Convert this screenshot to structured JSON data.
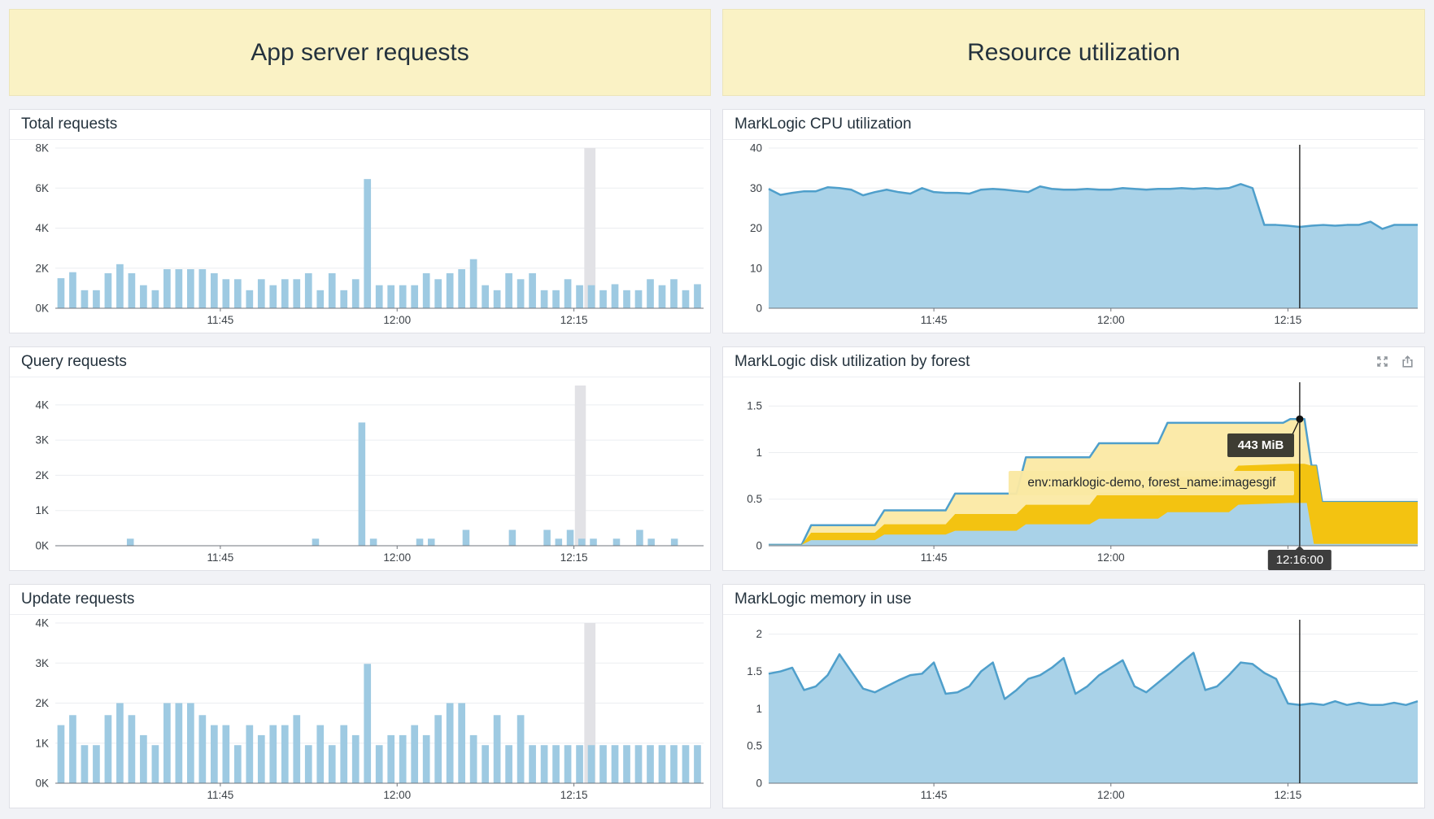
{
  "headers": [
    {
      "label": "App server requests"
    },
    {
      "label": "Resource utilization"
    }
  ],
  "colors": {
    "bar": "#9ecae2",
    "hover_bar": "#e2e2e6",
    "area_fill": "#a9d2e8",
    "line": "#4f9fcb",
    "gold": "#f3c311",
    "pale_yellow": "#fbeaa9",
    "grid": "#ebedf0",
    "axis": "#70757c",
    "tick_text": "#3b4147",
    "cursor": "#111111",
    "icon": "#8f959b"
  },
  "time_axis": {
    "t_max": 55,
    "ticks": [
      {
        "t": 14,
        "label": "11:45"
      },
      {
        "t": 29,
        "label": "12:00"
      },
      {
        "t": 44,
        "label": "12:15"
      }
    ]
  },
  "cursor": {
    "t": 45,
    "time_label": "12:16:00"
  },
  "chart_data": [
    {
      "type": "bar",
      "title": "Total requests",
      "ymax": 8,
      "yticks": [
        {
          "v": 0,
          "label": "0K"
        },
        {
          "v": 2,
          "label": "2K"
        },
        {
          "v": 4,
          "label": "4K"
        },
        {
          "v": 6,
          "label": "6K"
        },
        {
          "v": 8,
          "label": "8K"
        }
      ],
      "hover_index": 45,
      "values": [
        1.5,
        1.8,
        0.9,
        0.9,
        1.75,
        2.2,
        1.75,
        1.15,
        0.9,
        1.95,
        1.95,
        1.95,
        1.95,
        1.75,
        1.45,
        1.45,
        0.9,
        1.45,
        1.15,
        1.45,
        1.45,
        1.75,
        0.9,
        1.75,
        0.9,
        1.45,
        6.45,
        1.15,
        1.15,
        1.15,
        1.15,
        1.75,
        1.45,
        1.75,
        1.95,
        2.45,
        1.15,
        0.9,
        1.75,
        1.45,
        1.75,
        0.9,
        0.9,
        1.45,
        1.15,
        1.15,
        0.9,
        1.2,
        0.9,
        0.9,
        1.45,
        1.15,
        1.45,
        0.9,
        1.2
      ]
    },
    {
      "type": "bar",
      "title": "Query requests",
      "ymax": 4.55,
      "yticks": [
        {
          "v": 0,
          "label": "0K"
        },
        {
          "v": 1,
          "label": "1K"
        },
        {
          "v": 2,
          "label": "2K"
        },
        {
          "v": 3,
          "label": "3K"
        },
        {
          "v": 4,
          "label": "4K"
        }
      ],
      "hover_index": 45,
      "values": [
        0,
        0,
        0,
        0,
        0,
        0,
        0.2,
        0,
        0,
        0,
        0,
        0,
        0,
        0,
        0,
        0,
        0,
        0,
        0,
        0,
        0,
        0,
        0.2,
        0,
        0,
        0,
        3.5,
        0.2,
        0,
        0,
        0,
        0.2,
        0.2,
        0,
        0,
        0.45,
        0,
        0,
        0,
        0.45,
        0,
        0,
        0.45,
        0.2,
        0.45,
        0.2,
        0.2,
        0,
        0.2,
        0,
        0.45,
        0.2,
        0,
        0.2,
        0,
        0
      ]
    },
    {
      "type": "bar",
      "title": "Update requests",
      "ymax": 4,
      "yticks": [
        {
          "v": 0,
          "label": "0K"
        },
        {
          "v": 1,
          "label": "1K"
        },
        {
          "v": 2,
          "label": "2K"
        },
        {
          "v": 3,
          "label": "3K"
        },
        {
          "v": 4,
          "label": "4K"
        }
      ],
      "hover_index": 45,
      "values": [
        1.45,
        1.7,
        0.95,
        0.95,
        1.7,
        2.0,
        1.7,
        1.2,
        0.95,
        2.0,
        2.0,
        2.0,
        1.7,
        1.45,
        1.45,
        0.95,
        1.45,
        1.2,
        1.45,
        1.45,
        1.7,
        0.95,
        1.45,
        0.95,
        1.45,
        1.2,
        2.98,
        0.95,
        1.2,
        1.2,
        1.45,
        1.2,
        1.7,
        2.0,
        2.0,
        1.2,
        0.95,
        1.7,
        0.95,
        1.7,
        0.95,
        0.95,
        0.95,
        0.95,
        0.95,
        0.95,
        0.95,
        0.95,
        0.95,
        0.95,
        0.95,
        0.95,
        0.95,
        0.95,
        0.95
      ]
    },
    {
      "type": "area",
      "title": "MarkLogic CPU utilization",
      "ymax": 40,
      "yticks": [
        {
          "v": 0,
          "label": "0"
        },
        {
          "v": 10,
          "label": "10"
        },
        {
          "v": 20,
          "label": "20"
        },
        {
          "v": 30,
          "label": "30"
        },
        {
          "v": 40,
          "label": "40"
        }
      ],
      "cursor": true,
      "values": [
        29.8,
        28.3,
        28.8,
        29.2,
        29.2,
        30.2,
        30.0,
        29.6,
        28.2,
        29.0,
        29.6,
        29.0,
        28.6,
        30.0,
        29.0,
        28.8,
        28.8,
        28.6,
        29.6,
        29.8,
        29.6,
        29.3,
        29.0,
        30.4,
        29.8,
        29.6,
        29.6,
        29.8,
        29.6,
        29.6,
        30.0,
        29.8,
        29.6,
        29.8,
        29.8,
        30.0,
        29.8,
        30.0,
        29.8,
        30.0,
        31.0,
        30.0,
        20.8,
        20.8,
        20.6,
        20.3,
        20.6,
        20.8,
        20.6,
        20.8,
        20.8,
        21.6,
        19.8,
        20.8,
        20.8,
        20.8
      ]
    },
    {
      "type": "stacked",
      "title": "MarkLogic disk utilization by forest",
      "ymax": 1.72,
      "yticks": [
        {
          "v": 0,
          "label": "0"
        },
        {
          "v": 0.5,
          "label": "0.5"
        },
        {
          "v": 1,
          "label": "1"
        },
        {
          "v": 1.5,
          "label": "1.5"
        }
      ],
      "cursor": true,
      "has_icons": true,
      "series": [
        {
          "name": "total-pale-yellow",
          "color_key": "pale_yellow",
          "stroke": true,
          "points": [
            [
              0,
              0.01
            ],
            [
              2.8,
              0.01
            ],
            [
              3.6,
              0.22
            ],
            [
              9,
              0.22
            ],
            [
              9.8,
              0.38
            ],
            [
              15,
              0.38
            ],
            [
              15.8,
              0.56
            ],
            [
              21,
              0.56
            ],
            [
              21.8,
              0.95
            ],
            [
              27.2,
              0.95
            ],
            [
              28,
              1.1
            ],
            [
              33,
              1.1
            ],
            [
              33.8,
              1.32
            ],
            [
              43.6,
              1.32
            ],
            [
              44.2,
              1.36
            ],
            [
              45.4,
              1.36
            ],
            [
              46,
              0.86
            ],
            [
              46.4,
              0.86
            ],
            [
              46.9,
              0.47
            ],
            [
              55,
              0.47
            ]
          ]
        },
        {
          "name": "gold",
          "color_key": "gold",
          "stroke": false,
          "points": [
            [
              0,
              0.01
            ],
            [
              2.8,
              0.01
            ],
            [
              3.6,
              0.14
            ],
            [
              9,
              0.14
            ],
            [
              9.8,
              0.23
            ],
            [
              15,
              0.23
            ],
            [
              15.8,
              0.34
            ],
            [
              21,
              0.34
            ],
            [
              21.8,
              0.44
            ],
            [
              27.2,
              0.44
            ],
            [
              28,
              0.57
            ],
            [
              33,
              0.57
            ],
            [
              33.8,
              0.74
            ],
            [
              39,
              0.74
            ],
            [
              39.8,
              0.86
            ],
            [
              44.2,
              0.88
            ],
            [
              45.4,
              0.88
            ],
            [
              46,
              0.86
            ],
            [
              46.4,
              0.86
            ],
            [
              46.9,
              0.47
            ],
            [
              55,
              0.47
            ]
          ]
        },
        {
          "name": "blue",
          "color_key": "area_fill",
          "stroke": false,
          "points": [
            [
              0,
              0.01
            ],
            [
              2.8,
              0.01
            ],
            [
              3.6,
              0.06
            ],
            [
              9,
              0.06
            ],
            [
              9.8,
              0.12
            ],
            [
              15,
              0.12
            ],
            [
              15.8,
              0.16
            ],
            [
              21,
              0.16
            ],
            [
              21.8,
              0.23
            ],
            [
              27.2,
              0.23
            ],
            [
              28,
              0.29
            ],
            [
              33,
              0.29
            ],
            [
              33.8,
              0.36
            ],
            [
              39,
              0.36
            ],
            [
              39.8,
              0.44
            ],
            [
              44.2,
              0.46
            ],
            [
              45.6,
              0.46
            ],
            [
              46.2,
              0.02
            ],
            [
              55,
              0.02
            ]
          ]
        }
      ],
      "marker": {
        "t": 45,
        "v": 1.36
      },
      "tooltip": {
        "value": "443 MiB",
        "label": "env:marklogic-demo, forest_name:imagesgif",
        "time": "12:16:00"
      }
    },
    {
      "type": "area",
      "title": "MarkLogic memory in use",
      "ymax": 2.15,
      "yticks": [
        {
          "v": 0,
          "label": "0"
        },
        {
          "v": 0.5,
          "label": "0.5"
        },
        {
          "v": 1,
          "label": "1"
        },
        {
          "v": 1.5,
          "label": "1.5"
        },
        {
          "v": 2,
          "label": "2"
        }
      ],
      "cursor": true,
      "values": [
        1.47,
        1.5,
        1.55,
        1.25,
        1.3,
        1.45,
        1.73,
        1.5,
        1.27,
        1.22,
        1.3,
        1.38,
        1.45,
        1.47,
        1.62,
        1.2,
        1.22,
        1.3,
        1.5,
        1.62,
        1.13,
        1.25,
        1.4,
        1.45,
        1.55,
        1.68,
        1.2,
        1.3,
        1.45,
        1.55,
        1.65,
        1.3,
        1.22,
        1.35,
        1.48,
        1.62,
        1.75,
        1.25,
        1.3,
        1.45,
        1.62,
        1.6,
        1.48,
        1.4,
        1.07,
        1.05,
        1.07,
        1.05,
        1.1,
        1.05,
        1.08,
        1.05,
        1.05,
        1.08,
        1.05,
        1.1
      ]
    }
  ]
}
